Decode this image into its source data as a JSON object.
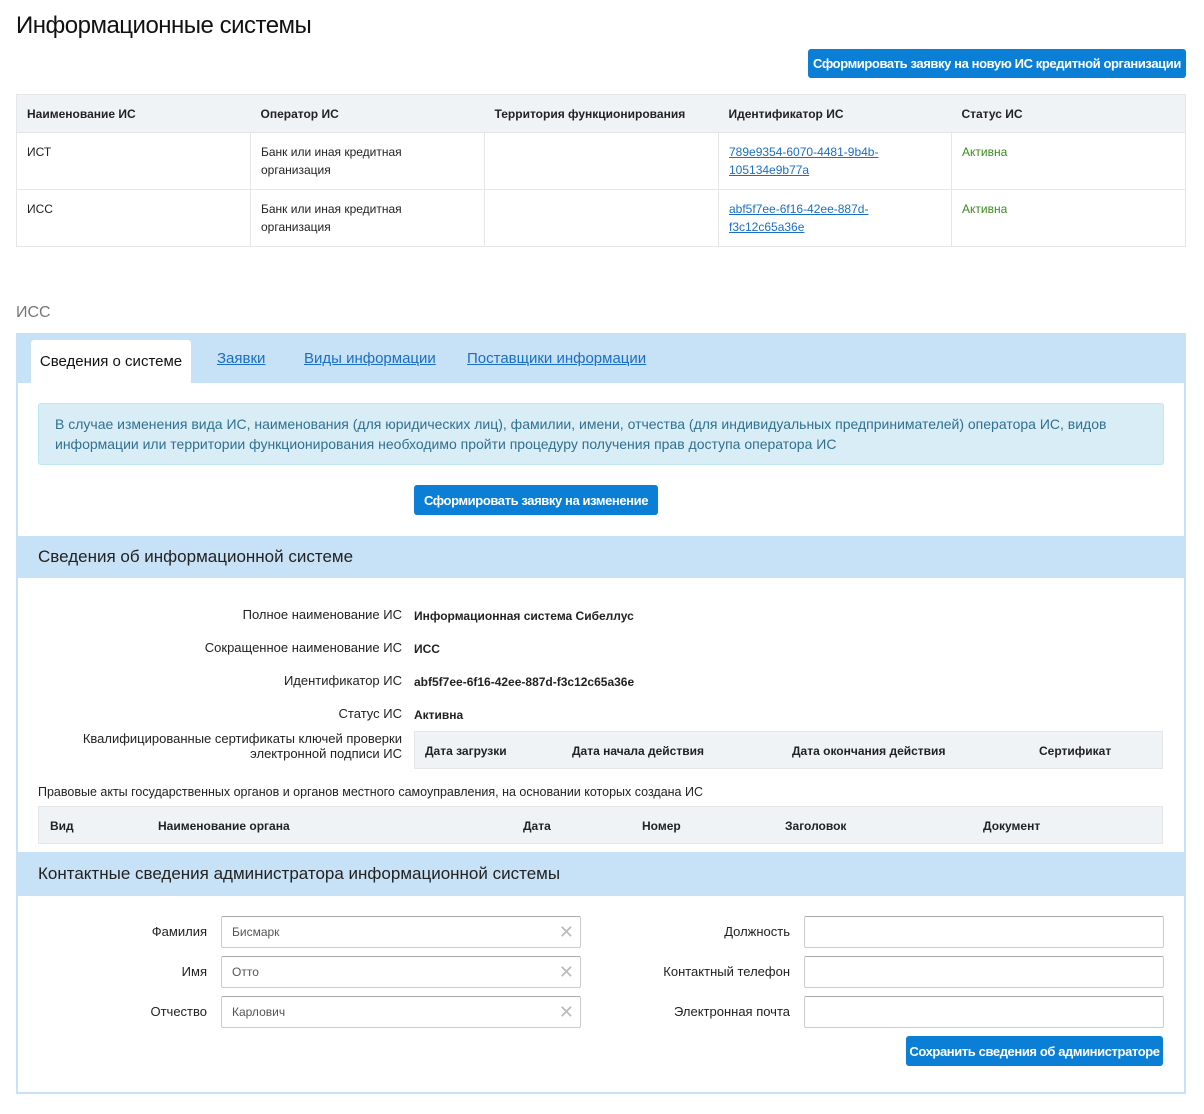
{
  "page": {
    "title": "Информационные системы",
    "new_request_button": "Сформировать заявку на новую ИС кредитной организации"
  },
  "systems_table": {
    "headers": [
      "Наименование ИС",
      "Оператор ИС",
      "Территория функционирования",
      "Идентификатор ИС",
      "Статус ИС"
    ],
    "rows": [
      {
        "name": "ИСТ",
        "operator": "Банк или иная кредитная организация",
        "territory": "",
        "id_line1": "789e9354-6070-4481-9b4b-",
        "id_line2": "105134e9b77a",
        "status": "Активна"
      },
      {
        "name": "ИСС",
        "operator": "Банк или иная кредитная организация",
        "territory": "",
        "id_line1": "abf5f7ee-6f16-42ee-887d-",
        "id_line2": "f3c12c65a36e",
        "status": "Активна"
      }
    ]
  },
  "selected": {
    "title": "ИСС"
  },
  "tabs": [
    "Сведения о системе",
    "Заявки",
    "Виды информации",
    "Поставщики информации"
  ],
  "alert": "В случае изменения вида ИС, наименования (для юридических лиц), фамилии, имени, отчества (для индивидуальных предпринимателей) оператора ИС, видов информации или территории функционирования необходимо пройти процедуру получения прав доступа оператора ИС",
  "change_button": "Сформировать заявку на изменение",
  "info": {
    "title": "Сведения об информационной системе",
    "full_name_label": "Полное наименование ИС",
    "full_name": "Информационная система Сибеллус",
    "short_name_label": "Сокращенное наименование ИС",
    "short_name": "ИСС",
    "id_label": "Идентификатор ИС",
    "id": "abf5f7ee-6f16-42ee-887d-f3c12c65a36e",
    "status_label": "Статус ИС",
    "status": "Активна",
    "certs_label_1": "Квалифицированные сертификаты ключей проверки",
    "certs_label_2": "электронной подписи ИС",
    "certs_headers": [
      "Дата загрузки",
      "Дата начала действия",
      "Дата окончания действия",
      "Сертификат"
    ],
    "acts_label": "Правовые акты государственных органов и органов местного самоуправления, на основании которых создана ИС",
    "acts_headers": [
      "Вид",
      "Наименование органа",
      "Дата",
      "Номер",
      "Заголовок",
      "Документ"
    ]
  },
  "admin": {
    "title": "Контактные сведения администратора информационной системы",
    "last_name_label": "Фамилия",
    "last_name": "Бисмарк",
    "first_name_label": "Имя",
    "first_name": "Отто",
    "middle_name_label": "Отчество",
    "middle_name": "Карлович",
    "position_label": "Должность",
    "position": "",
    "phone_label": "Контактный телефон",
    "phone": "",
    "email_label": "Электронная почта",
    "email": "",
    "save_button": "Сохранить сведения об администраторе"
  }
}
